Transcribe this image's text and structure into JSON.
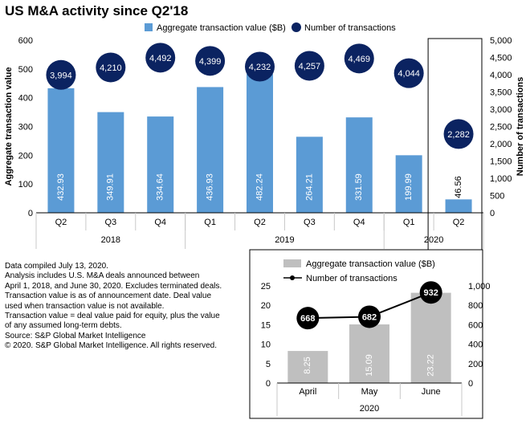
{
  "title": "US M&A activity since Q2'18",
  "notes": [
    "Data compiled July 13, 2020.",
    "Analysis includes U.S. M&A deals announced between",
    "April 1, 2018, and June 30, 2020. Excludes terminated deals.",
    "Transaction value is as of announcement date. Deal value",
    "used when transaction value is not available.",
    "Transaction value = deal value paid for equity, plus the value",
    "of any assumed long-term debts.",
    "Source: S&P Global Market Intelligence",
    "© 2020. S&P Global Market Intelligence. All rights reserved."
  ],
  "colors": {
    "bar_main": "#5b9bd5",
    "bubble": "#0b2361",
    "bar_inset": "#bfbfbf",
    "inset_marker": "#000000",
    "axis": "#000000",
    "divider": "#c8c8c8"
  },
  "chart_data": [
    {
      "type": "bar",
      "name": "main",
      "categories": [
        "Q2",
        "Q3",
        "Q4",
        "Q1",
        "Q2",
        "Q3",
        "Q4",
        "Q1",
        "Q2"
      ],
      "groups": [
        {
          "label": "2018",
          "span": 3
        },
        {
          "label": "2019",
          "span": 4
        },
        {
          "label": "2020",
          "span": 2
        }
      ],
      "series": [
        {
          "name": "Aggregate transaction value ($B)",
          "type": "bar",
          "axis": "left",
          "values": [
            432.93,
            349.91,
            334.64,
            436.93,
            482.24,
            264.21,
            331.59,
            199.99,
            46.56
          ],
          "labels": [
            "432.93",
            "349.91",
            "334.64",
            "436.93",
            "482.24",
            "264.21",
            "331.59",
            "199.99",
            "46.56"
          ]
        },
        {
          "name": "Number of transactions",
          "type": "bubble",
          "axis": "right",
          "values": [
            3994,
            4210,
            4492,
            4399,
            4232,
            4257,
            4469,
            4044,
            2282
          ],
          "labels": [
            "3,994",
            "4,210",
            "4,492",
            "4,399",
            "4,232",
            "4,257",
            "4,469",
            "4,044",
            "2,282"
          ]
        }
      ],
      "ylabel": "Aggregate transaction value",
      "y2label": "Number of transactions",
      "ylim": [
        0,
        600
      ],
      "yticks": [
        "0",
        "100",
        "200",
        "300",
        "400",
        "500",
        "600"
      ],
      "y2lim": [
        0,
        5000
      ],
      "y2ticks": [
        "0",
        "500",
        "1,000",
        "1,500",
        "2,000",
        "2,500",
        "3,000",
        "3,500",
        "4,000",
        "4,500",
        "5,000"
      ],
      "legend": "top",
      "highlight_category": 8
    },
    {
      "type": "bar",
      "name": "inset",
      "categories": [
        "April",
        "May",
        "June"
      ],
      "groups": [
        {
          "label": "2020",
          "span": 3
        }
      ],
      "series": [
        {
          "name": "Aggregate transaction value ($B)",
          "type": "bar",
          "axis": "left",
          "values": [
            8.25,
            15.09,
            23.22
          ],
          "labels": [
            "8.25",
            "15.09",
            "23.22"
          ]
        },
        {
          "name": "Number of transactions",
          "type": "line",
          "axis": "right",
          "values": [
            668,
            682,
            932
          ],
          "labels": [
            "668",
            "682",
            "932"
          ]
        }
      ],
      "ylim": [
        0,
        25
      ],
      "yticks": [
        "0",
        "5",
        "10",
        "15",
        "20",
        "25"
      ],
      "y2lim": [
        0,
        1000
      ],
      "y2ticks": [
        "0",
        "200",
        "400",
        "600",
        "800",
        "1,000"
      ],
      "legend": "top"
    }
  ]
}
